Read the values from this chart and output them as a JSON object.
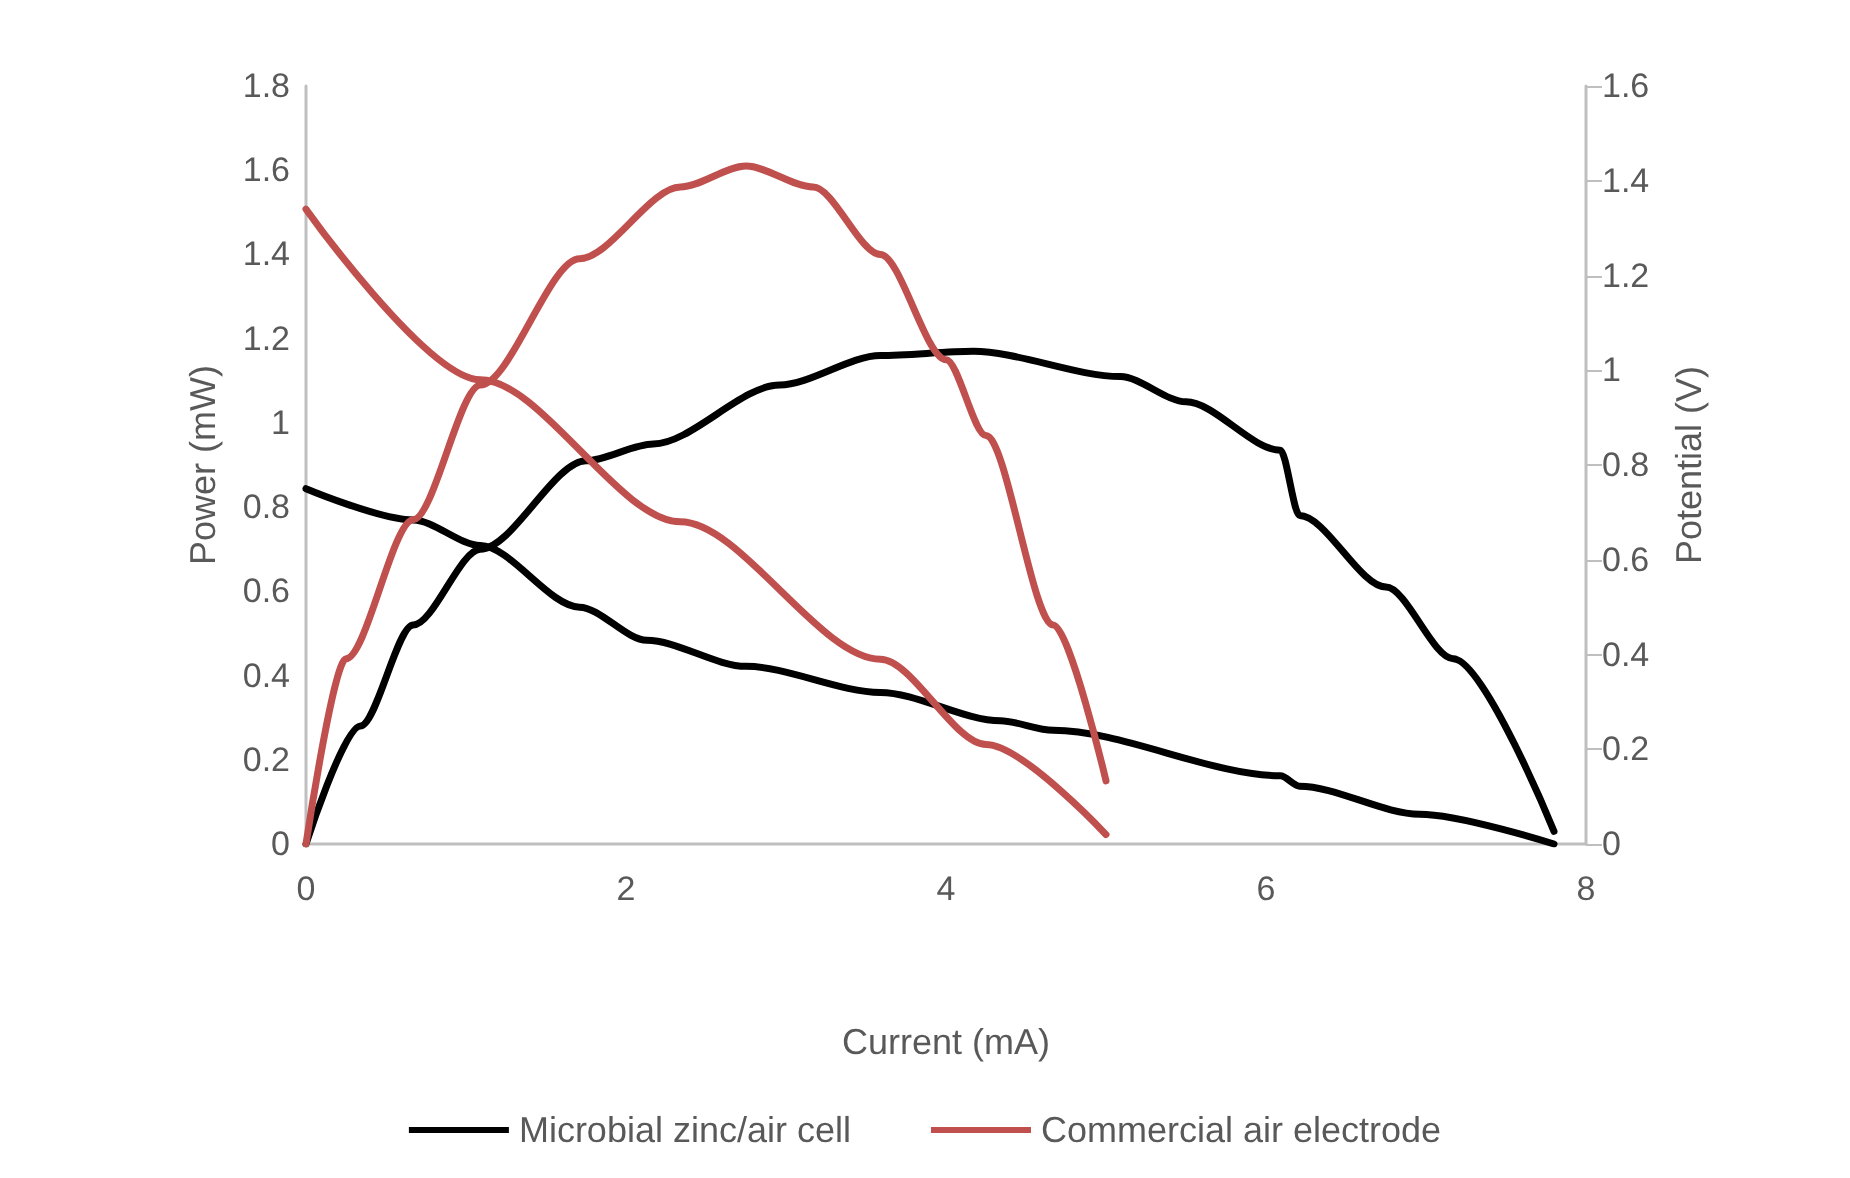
{
  "chart_data": {
    "type": "line",
    "xlabel": "Current (mA)",
    "ylabel": "Power (mW)",
    "y2label": "Potential (V)",
    "xlim": [
      0,
      8
    ],
    "xticks": [
      0,
      2,
      4,
      6,
      8
    ],
    "ylim": [
      0,
      1.8
    ],
    "yticks": [
      0,
      0.2,
      0.4,
      0.6,
      0.8,
      1,
      1.2,
      1.4,
      1.6,
      1.8
    ],
    "y2lim": [
      0,
      1.6
    ],
    "y2ticks": [
      0,
      0.2,
      0.4,
      0.6,
      0.8,
      1,
      1.2,
      1.4,
      1.6
    ],
    "grid": false,
    "legend": "bottom",
    "marker": "none",
    "line_style": "solid",
    "series": [
      {
        "name": "Microbial zinc/air cell",
        "color": "#000000",
        "x": [
          0,
          0.34,
          0.67,
          1.09,
          1.75,
          2.17,
          2.96,
          3.59,
          4.17,
          5.09,
          5.5,
          6.09,
          6.21,
          6.75,
          7.17,
          7.8
        ],
        "values": [
          0,
          0.28,
          0.52,
          0.7,
          0.91,
          0.95,
          1.09,
          1.16,
          1.17,
          1.11,
          1.05,
          0.935,
          0.78,
          0.61,
          0.44,
          0.03
        ]
      },
      {
        "color": "#000000",
        "axis": "y2",
        "x": [
          0,
          0.67,
          1.09,
          1.71,
          2.13,
          2.75,
          3.59,
          4.34,
          4.67,
          6.09,
          6.21,
          6.96,
          7.8
        ],
        "values": [
          0.75,
          0.684,
          0.63,
          0.5,
          0.43,
          0.375,
          0.32,
          0.26,
          0.24,
          0.144,
          0.122,
          0.063,
          0
        ]
      },
      {
        "name": "Commercial air electrode",
        "color": "#c0504d",
        "x": [
          0,
          0.25,
          0.67,
          1.09,
          1.71,
          2.34,
          2.75,
          3.17,
          3.59,
          4,
          4.25,
          4.67,
          5
        ],
        "values": [
          0,
          0.44,
          0.77,
          1.09,
          1.39,
          1.56,
          1.61,
          1.56,
          1.4,
          1.15,
          0.97,
          0.52,
          0.15
        ]
      },
      {
        "color": "#c0504d",
        "axis": "y2",
        "x": [
          0,
          1.09,
          2.34,
          3.59,
          4.25,
          5
        ],
        "values": [
          1.34,
          0.98,
          0.68,
          0.39,
          0.21,
          0.02
        ]
      }
    ]
  }
}
